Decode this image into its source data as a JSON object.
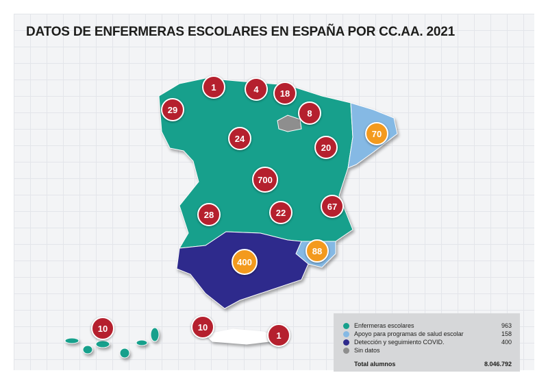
{
  "title": "DATOS DE ENFERMERAS ESCOLARES EN ESPAÑA POR CC.AA. 2021",
  "colors": {
    "enfermeras": "#17a08c",
    "apoyo": "#85b9e4",
    "covid": "#2e2a8c",
    "sin_datos": "#8e8e8e",
    "marker_red": "#b5202e",
    "marker_orange": "#f39a1e"
  },
  "markers": [
    {
      "value": "1",
      "type": "red"
    },
    {
      "value": "4",
      "type": "red"
    },
    {
      "value": "18",
      "type": "red"
    },
    {
      "value": "29",
      "type": "red"
    },
    {
      "value": "8",
      "type": "red"
    },
    {
      "value": "70",
      "type": "orange"
    },
    {
      "value": "24",
      "type": "red"
    },
    {
      "value": "20",
      "type": "red"
    },
    {
      "value": "700",
      "type": "red"
    },
    {
      "value": "67",
      "type": "red"
    },
    {
      "value": "28",
      "type": "red"
    },
    {
      "value": "22",
      "type": "red"
    },
    {
      "value": "88",
      "type": "orange"
    },
    {
      "value": "400",
      "type": "orange"
    },
    {
      "value": "10",
      "type": "red"
    },
    {
      "value": "10",
      "type": "red"
    },
    {
      "value": "1",
      "type": "red"
    }
  ],
  "legend": {
    "items": [
      {
        "label": "Enfermeras escolares",
        "value": "963"
      },
      {
        "label": "Apoyo para programas de salud escolar",
        "value": "158"
      },
      {
        "label": "Detección y seguimiento COVID.",
        "value": "400"
      },
      {
        "label": "Sin datos",
        "value": ""
      }
    ],
    "total_label": "Total alumnos",
    "total_value": "8.046.792"
  }
}
